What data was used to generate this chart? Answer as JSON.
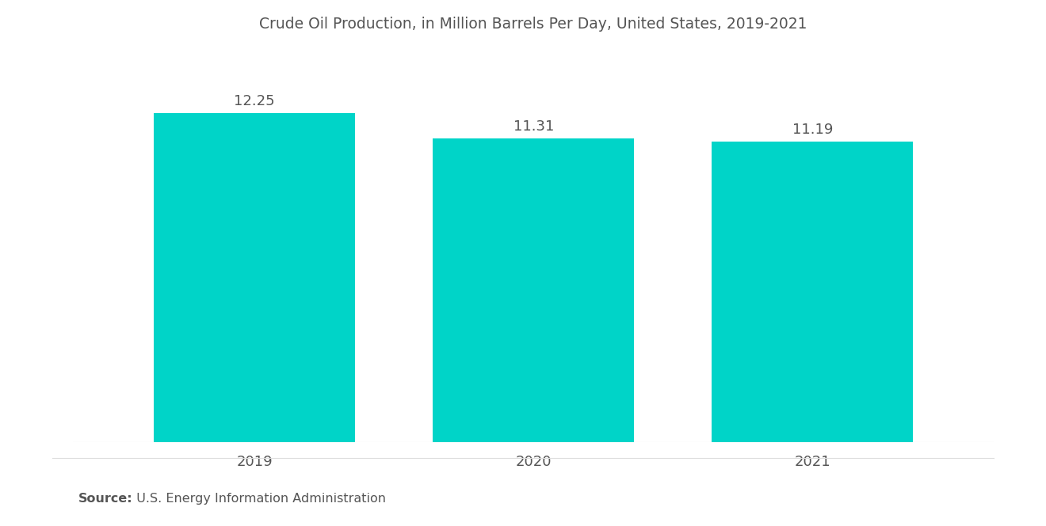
{
  "title": "Crude Oil Production, in Million Barrels Per Day, United States, 2019-2021",
  "categories": [
    "2019",
    "2020",
    "2021"
  ],
  "values": [
    12.25,
    11.31,
    11.19
  ],
  "bar_color": "#00D4C8",
  "background_color": "#ffffff",
  "title_fontsize": 13.5,
  "label_fontsize": 13,
  "tick_fontsize": 13,
  "source_bold": "Source:",
  "source_rest": "  U.S. Energy Information Administration",
  "ylim": [
    0,
    14.5
  ],
  "bar_width": 0.72
}
